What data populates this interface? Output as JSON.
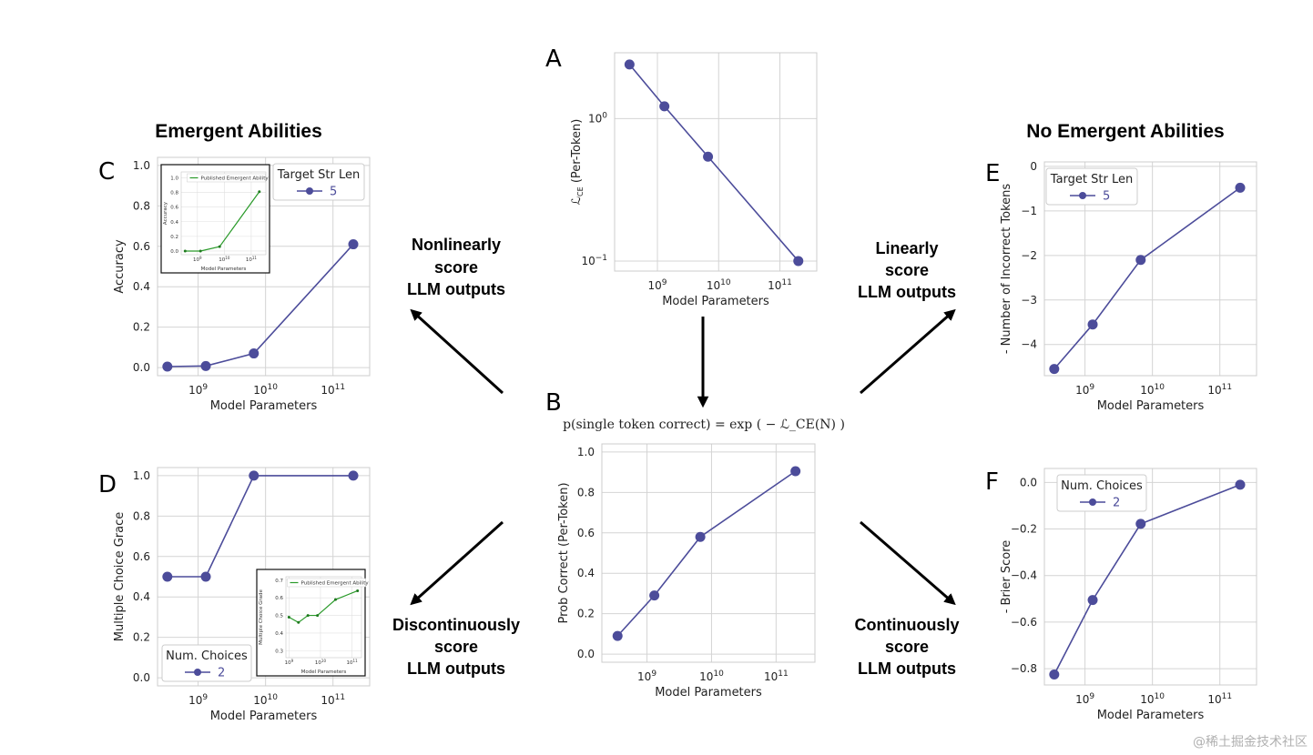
{
  "headings": {
    "left": "Emergent Abilities",
    "right": "No Emergent Abilities"
  },
  "arrows": {
    "nonlinear": [
      "Nonlinearly",
      "score",
      "LLM outputs"
    ],
    "linear": [
      "Linearly",
      "score",
      "LLM outputs"
    ],
    "discontinuous": [
      "Discontinuously",
      "score",
      "LLM outputs"
    ],
    "continuous": [
      "Continuously",
      "score",
      "LLM outputs"
    ]
  },
  "formula": "p(single token correct) = exp ( − ℒ_CE(N) )",
  "watermark": "@稀土掘金技术社区",
  "colors": {
    "series": "#4c4c9a",
    "inset": "#2a9a2a",
    "grid": "#d4d4d4"
  },
  "chart_data": [
    {
      "id": "A",
      "type": "line",
      "letter": "A",
      "xscale": "log",
      "yscale": "log",
      "xlim": [
        200000000.0,
        400000000000.0
      ],
      "ylim": [
        0.085,
        2.9
      ],
      "xticks": [
        {
          "v": 1000000000.0,
          "b": "10",
          "e": "9"
        },
        {
          "v": 10000000000.0,
          "b": "10",
          "e": "10"
        },
        {
          "v": 100000000000.0,
          "b": "10",
          "e": "11"
        }
      ],
      "yticks": [
        {
          "v": 0.1,
          "b": "10",
          "e": "−1"
        },
        {
          "v": 1,
          "b": "10",
          "e": "0"
        }
      ],
      "xlabel": "Model Parameters",
      "ylabel": "ℒ_CE (Per-Token)",
      "x": [
        350000000.0,
        1300000000.0,
        6700000000.0,
        200000000000.0
      ],
      "y": [
        2.4,
        1.22,
        0.54,
        0.1
      ]
    },
    {
      "id": "B",
      "type": "line",
      "letter": "B",
      "xscale": "log",
      "yscale": "linear",
      "xlim": [
        200000000.0,
        400000000000.0
      ],
      "ylim": [
        -0.04,
        1.04
      ],
      "xticks": [
        {
          "v": 1000000000.0,
          "b": "10",
          "e": "9"
        },
        {
          "v": 10000000000.0,
          "b": "10",
          "e": "10"
        },
        {
          "v": 100000000000.0,
          "b": "10",
          "e": "11"
        }
      ],
      "yticks": [
        {
          "v": 0,
          "t": "0.0"
        },
        {
          "v": 0.2,
          "t": "0.2"
        },
        {
          "v": 0.4,
          "t": "0.4"
        },
        {
          "v": 0.6,
          "t": "0.6"
        },
        {
          "v": 0.8,
          "t": "0.8"
        },
        {
          "v": 1,
          "t": "1.0"
        }
      ],
      "xlabel": "Model Parameters",
      "ylabel": "Prob Correct (Per-Token)",
      "x": [
        350000000.0,
        1300000000.0,
        6700000000.0,
        200000000000.0
      ],
      "y": [
        0.09,
        0.29,
        0.58,
        0.905
      ]
    },
    {
      "id": "C",
      "type": "line",
      "letter": "C",
      "xscale": "log",
      "yscale": "linear",
      "xlim": [
        250000000.0,
        350000000000.0
      ],
      "ylim": [
        -0.04,
        1.04
      ],
      "xticks": [
        {
          "v": 1000000000.0,
          "b": "10",
          "e": "9"
        },
        {
          "v": 10000000000.0,
          "b": "10",
          "e": "10"
        },
        {
          "v": 100000000000.0,
          "b": "10",
          "e": "11"
        }
      ],
      "yticks": [
        {
          "v": 0,
          "t": "0.0"
        },
        {
          "v": 0.2,
          "t": "0.2"
        },
        {
          "v": 0.4,
          "t": "0.4"
        },
        {
          "v": 0.6,
          "t": "0.6"
        },
        {
          "v": 0.8,
          "t": "0.8"
        },
        {
          "v": 1,
          "t": "1.0"
        }
      ],
      "xlabel": "Model Parameters",
      "ylabel": "Accuracy",
      "legend": {
        "title": "Target Str Len",
        "entry": "5",
        "position": "top-right"
      },
      "x": [
        350000000.0,
        1300000000.0,
        6700000000.0,
        200000000000.0
      ],
      "y": [
        0.005,
        0.008,
        0.07,
        0.61
      ],
      "inset": {
        "legend": "Published Emergent Ability",
        "xlabel": "Model Parameters",
        "ylabel": "Accuracy",
        "xscale": "log",
        "xlim": [
          250000000.0,
          350000000000.0
        ],
        "ylim": [
          -0.05,
          1.08
        ],
        "xticks": [
          {
            "v": 1000000000.0,
            "b": "10",
            "e": "9"
          },
          {
            "v": 10000000000.0,
            "b": "10",
            "e": "10"
          },
          {
            "v": 100000000000.0,
            "b": "10",
            "e": "11"
          }
        ],
        "yticks": [
          {
            "v": 0,
            "t": "0.0"
          },
          {
            "v": 0.2,
            "t": "0.2"
          },
          {
            "v": 0.4,
            "t": "0.4"
          },
          {
            "v": 0.6,
            "t": "0.6"
          },
          {
            "v": 0.8,
            "t": "0.8"
          },
          {
            "v": 1,
            "t": "1.0"
          }
        ],
        "x": [
          350000000.0,
          1300000000.0,
          6700000000.0,
          200000000000.0
        ],
        "y": [
          0.0,
          0.0,
          0.06,
          0.81
        ]
      }
    },
    {
      "id": "D",
      "type": "line",
      "letter": "D",
      "xscale": "log",
      "yscale": "linear",
      "xlim": [
        250000000.0,
        350000000000.0
      ],
      "ylim": [
        -0.04,
        1.04
      ],
      "xticks": [
        {
          "v": 1000000000.0,
          "b": "10",
          "e": "9"
        },
        {
          "v": 10000000000.0,
          "b": "10",
          "e": "10"
        },
        {
          "v": 100000000000.0,
          "b": "10",
          "e": "11"
        }
      ],
      "yticks": [
        {
          "v": 0,
          "t": "0.0"
        },
        {
          "v": 0.2,
          "t": "0.2"
        },
        {
          "v": 0.4,
          "t": "0.4"
        },
        {
          "v": 0.6,
          "t": "0.6"
        },
        {
          "v": 0.8,
          "t": "0.8"
        },
        {
          "v": 1,
          "t": "1.0"
        }
      ],
      "xlabel": "Model Parameters",
      "ylabel": "Multiple Choice Grace",
      "legend": {
        "title": "Num. Choices",
        "entry": "2",
        "position": "lower-left"
      },
      "x": [
        350000000.0,
        1300000000.0,
        6700000000.0,
        200000000000.0
      ],
      "y": [
        0.5,
        0.5,
        1.0,
        1.0
      ],
      "inset": {
        "legend": "Published Emergent Ability",
        "xlabel": "Model Parameters",
        "ylabel": "Multiple Choice Grade",
        "xscale": "log",
        "xlim": [
          800000000.0,
          200000000000.0
        ],
        "ylim": [
          0.26,
          0.72
        ],
        "xticks": [
          {
            "v": 1000000000.0,
            "b": "10",
            "e": "9"
          },
          {
            "v": 10000000000.0,
            "b": "10",
            "e": "10"
          },
          {
            "v": 100000000000.0,
            "b": "10",
            "e": "11"
          }
        ],
        "yticks": [
          {
            "v": 0.3,
            "t": "0.3"
          },
          {
            "v": 0.4,
            "t": "0.4"
          },
          {
            "v": 0.5,
            "t": "0.5"
          },
          {
            "v": 0.6,
            "t": "0.6"
          },
          {
            "v": 0.7,
            "t": "0.7"
          }
        ],
        "x": [
          1000000000.0,
          2000000000.0,
          4000000000.0,
          8000000000.0,
          30000000000.0,
          150000000000.0
        ],
        "y": [
          0.49,
          0.46,
          0.5,
          0.5,
          0.59,
          0.64
        ]
      }
    },
    {
      "id": "E",
      "type": "line",
      "letter": "E",
      "xscale": "log",
      "yscale": "linear",
      "xlim": [
        250000000.0,
        350000000000.0
      ],
      "ylim": [
        -4.7,
        0.1
      ],
      "xticks": [
        {
          "v": 1000000000.0,
          "b": "10",
          "e": "9"
        },
        {
          "v": 10000000000.0,
          "b": "10",
          "e": "10"
        },
        {
          "v": 100000000000.0,
          "b": "10",
          "e": "11"
        }
      ],
      "yticks": [
        {
          "v": 0,
          "t": "0"
        },
        {
          "v": -1,
          "t": "−1"
        },
        {
          "v": -2,
          "t": "−2"
        },
        {
          "v": -3,
          "t": "−3"
        },
        {
          "v": -4,
          "t": "−4"
        }
      ],
      "xlabel": "Model Parameters",
      "ylabel": "- Number of Incorrect Tokens",
      "legend": {
        "title": "Target Str Len",
        "entry": "5",
        "position": "top-left"
      },
      "x": [
        350000000.0,
        1300000000.0,
        6700000000.0,
        200000000000.0
      ],
      "y": [
        -4.55,
        -3.55,
        -2.1,
        -0.48
      ]
    },
    {
      "id": "F",
      "type": "line",
      "letter": "F",
      "xscale": "log",
      "yscale": "linear",
      "xlim": [
        250000000.0,
        350000000000.0
      ],
      "ylim": [
        -0.87,
        0.06
      ],
      "xticks": [
        {
          "v": 1000000000.0,
          "b": "10",
          "e": "9"
        },
        {
          "v": 10000000000.0,
          "b": "10",
          "e": "10"
        },
        {
          "v": 100000000000.0,
          "b": "10",
          "e": "11"
        }
      ],
      "yticks": [
        {
          "v": 0,
          "t": "0.0"
        },
        {
          "v": -0.2,
          "t": "−0.2"
        },
        {
          "v": -0.4,
          "t": "−0.4"
        },
        {
          "v": -0.6,
          "t": "−0.6"
        },
        {
          "v": -0.8,
          "t": "−0.8"
        }
      ],
      "xlabel": "Model Parameters",
      "ylabel": "- Brier Score",
      "legend": {
        "title": "Num. Choices",
        "entry": "2",
        "position": "top-left"
      },
      "x": [
        350000000.0,
        1300000000.0,
        6700000000.0,
        200000000000.0
      ],
      "y": [
        -0.825,
        -0.505,
        -0.178,
        -0.01
      ]
    }
  ]
}
